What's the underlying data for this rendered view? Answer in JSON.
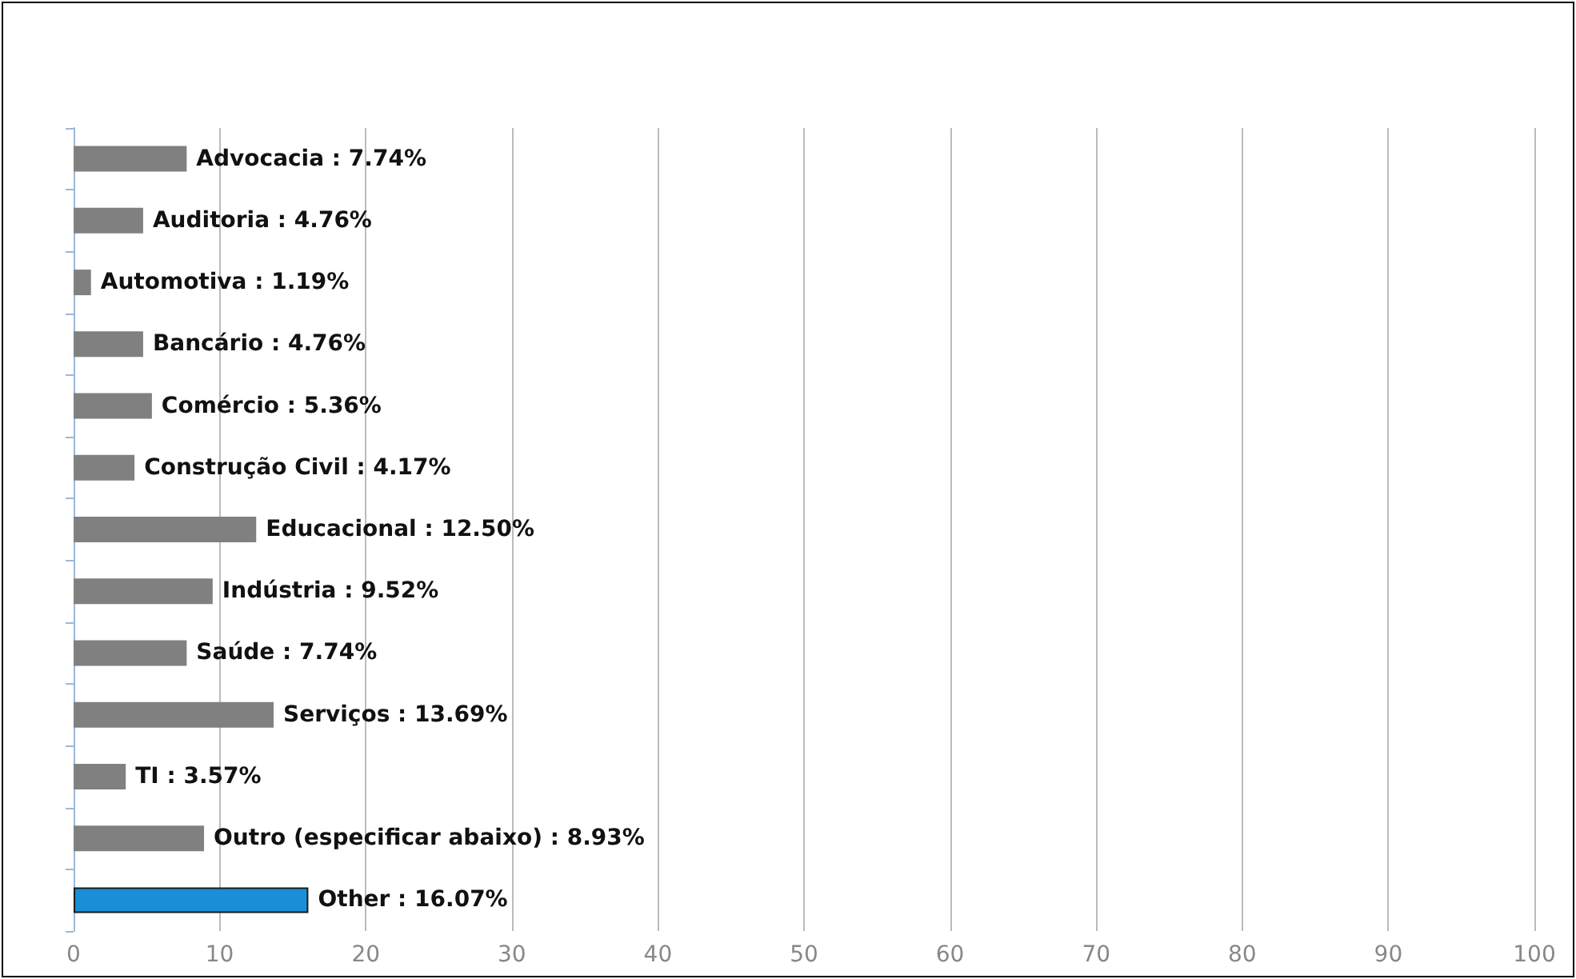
{
  "chart_data": {
    "type": "bar",
    "orientation": "horizontal",
    "categories": [
      null,
      null,
      null,
      null,
      null,
      null,
      null,
      null,
      null,
      null,
      null,
      null,
      null
    ],
    "values": [
      7.74,
      4.76,
      1.19,
      4.76,
      5.36,
      4.17,
      12.5,
      9.52,
      7.74,
      13.69,
      3.57,
      8.93,
      16.07
    ],
    "value_labels": [
      "Advocacia : 7.74%",
      "Auditoria : 4.76%",
      "Automotiva : 1.19%",
      "Bancário : 4.76%",
      "Comércio : 5.36%",
      "Construção Civil : 4.17%",
      "Educacional : 12.50%",
      "Indústria : 9.52%",
      "Saúde : 7.74%",
      "Serviços : 13.69%",
      "TI : 3.57%",
      "Outro (especificar abaixo) : 8.93%",
      "Other : 16.07%"
    ],
    "colors": [
      "#808080",
      "#808080",
      "#808080",
      "#808080",
      "#808080",
      "#808080",
      "#808080",
      "#808080",
      "#808080",
      "#808080",
      "#808080",
      "#808080",
      "#1a8fd6"
    ],
    "xlim": [
      0,
      100
    ],
    "xticks": [
      0,
      10,
      20,
      30,
      40,
      50,
      60,
      70,
      80,
      90,
      100
    ],
    "grid": "x",
    "tick_labels": "x"
  }
}
